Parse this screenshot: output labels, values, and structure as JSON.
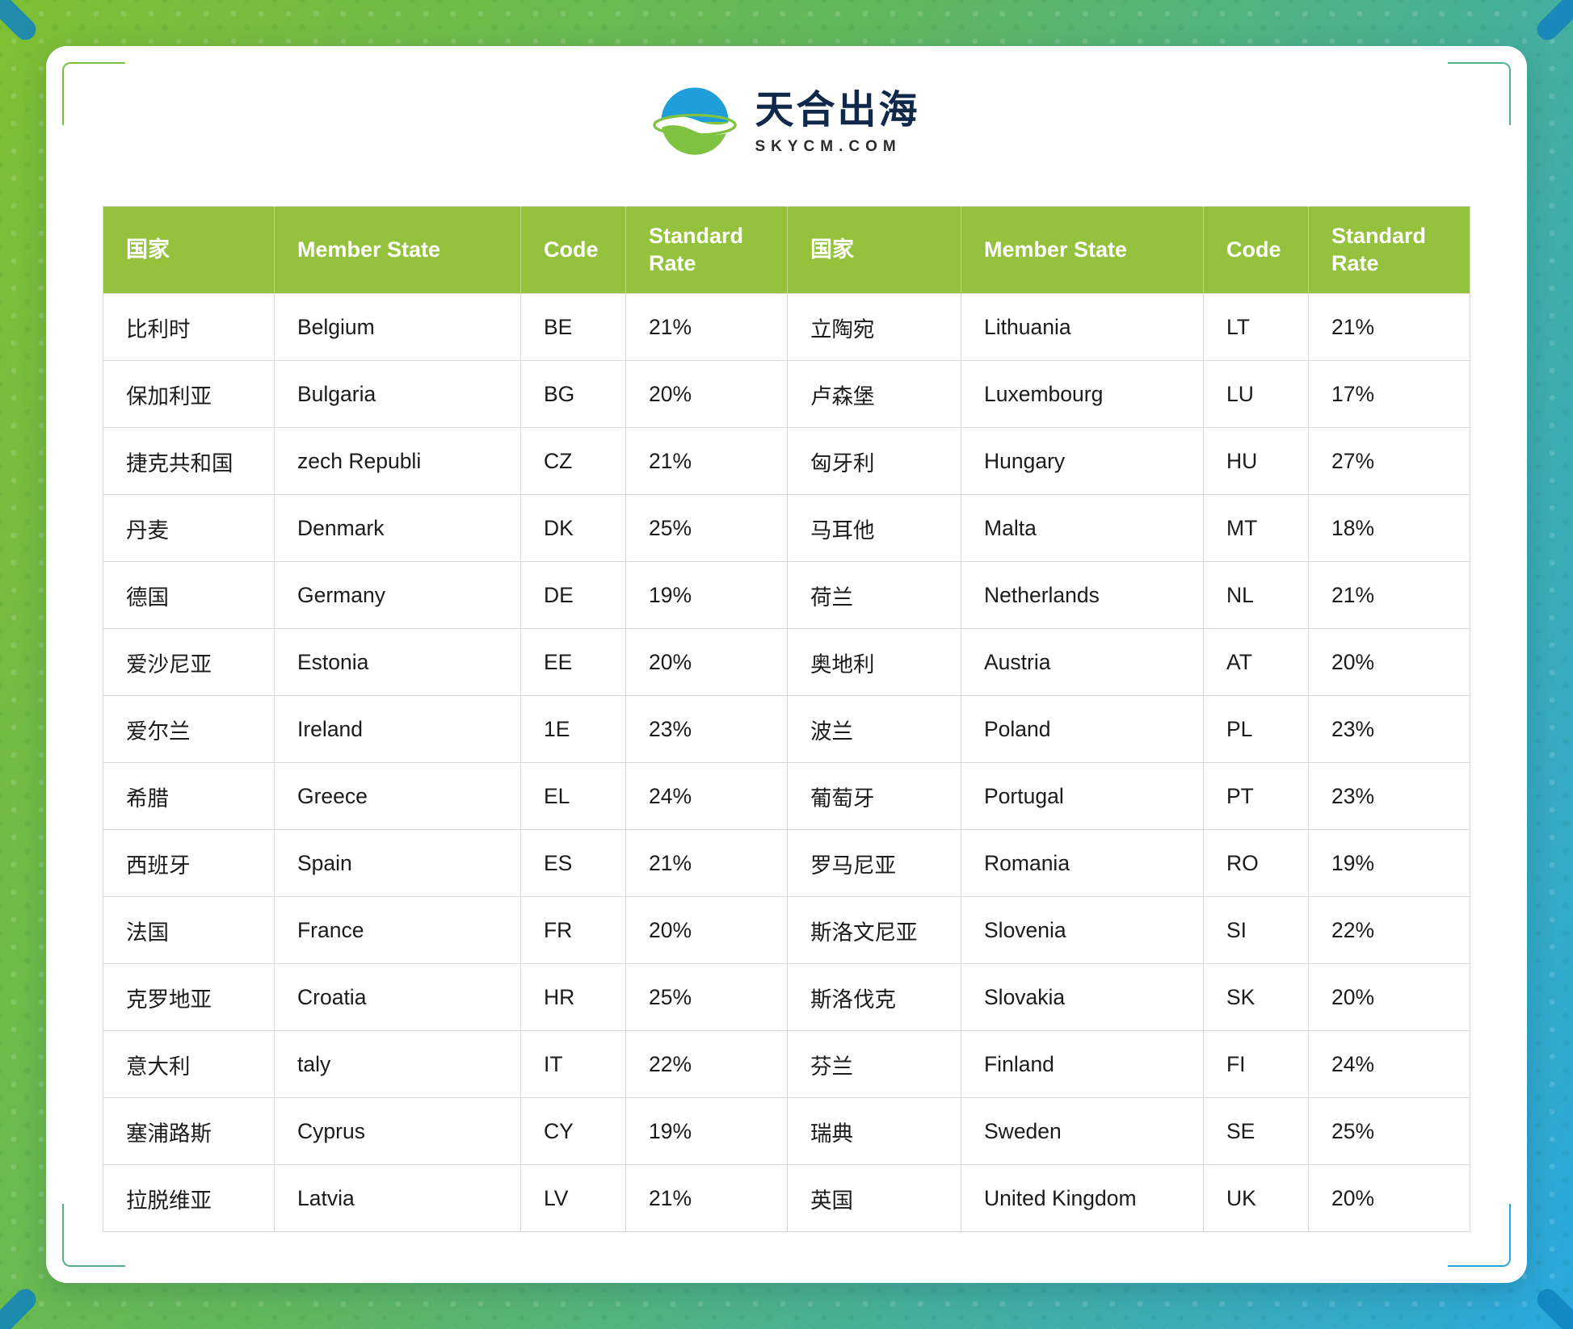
{
  "logo": {
    "title": "天合出海",
    "subtitle": "SKYCM.COM"
  },
  "colors": {
    "header_green": "#95c23d",
    "bg_green": "#7fbf33",
    "bg_blue": "#2aa7dd",
    "logo_navy": "#10294a"
  },
  "table": {
    "headers": [
      "国家",
      "Member State",
      "Code",
      "Standard Rate",
      "国家",
      "Member State",
      "Code",
      "Standard Rate"
    ],
    "rows": [
      [
        "比利时",
        "Belgium",
        "BE",
        "21%",
        "立陶宛",
        "Lithuania",
        "LT",
        "21%"
      ],
      [
        "保加利亚",
        "Bulgaria",
        "BG",
        "20%",
        "卢森堡",
        "Luxembourg",
        "LU",
        "17%"
      ],
      [
        "捷克共和国",
        "zech Republi",
        "CZ",
        "21%",
        "匈牙利",
        "Hungary",
        "HU",
        "27%"
      ],
      [
        "丹麦",
        "Denmark",
        "DK",
        "25%",
        "马耳他",
        "Malta",
        "MT",
        "18%"
      ],
      [
        "德国",
        "Germany",
        "DE",
        "19%",
        "荷兰",
        "Netherlands",
        "NL",
        "21%"
      ],
      [
        "爱沙尼亚",
        "Estonia",
        "EE",
        "20%",
        "奥地利",
        "Austria",
        "AT",
        "20%"
      ],
      [
        "爱尔兰",
        "Ireland",
        "1E",
        "23%",
        "波兰",
        "Poland",
        "PL",
        "23%"
      ],
      [
        "希腊",
        "Greece",
        "EL",
        "24%",
        "葡萄牙",
        "Portugal",
        "PT",
        "23%"
      ],
      [
        "西班牙",
        "Spain",
        "ES",
        "21%",
        "罗马尼亚",
        "Romania",
        "RO",
        "19%"
      ],
      [
        "法国",
        "France",
        "FR",
        "20%",
        "斯洛文尼亚",
        "Slovenia",
        "SI",
        "22%"
      ],
      [
        "克罗地亚",
        "Croatia",
        "HR",
        "25%",
        "斯洛伐克",
        "Slovakia",
        "SK",
        "20%"
      ],
      [
        "意大利",
        "taly",
        "IT",
        "22%",
        "芬兰",
        "Finland",
        "FI",
        "24%"
      ],
      [
        "塞浦路斯",
        "Cyprus",
        "CY",
        "19%",
        "瑞典",
        "Sweden",
        "SE",
        "25%"
      ],
      [
        "拉脱维亚",
        "Latvia",
        "LV",
        "21%",
        "英国",
        "United Kingdom",
        "UK",
        "20%"
      ]
    ],
    "cell_kinds": [
      "country-cn-cell",
      "member-state-cell",
      "code-cell",
      "standard-rate-cell"
    ]
  }
}
